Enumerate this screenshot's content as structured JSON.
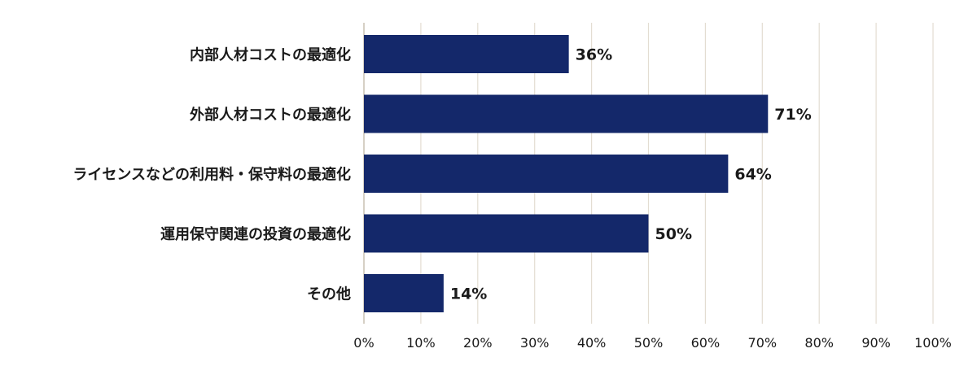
{
  "chart_data": {
    "type": "bar",
    "orientation": "horizontal",
    "title": "",
    "xlabel": "",
    "ylabel": "",
    "categories": [
      "内部人材コストの最適化",
      "外部人材コストの最適化",
      "ライセンスなどの利用料・保守料の最適化",
      "運用保守関連の投資の最適化",
      "その他"
    ],
    "values": [
      36,
      71,
      64,
      50,
      14
    ],
    "value_labels": [
      "36%",
      "71%",
      "64%",
      "50%",
      "14%"
    ],
    "xlim": [
      0,
      100
    ],
    "x_ticks": [
      0,
      10,
      20,
      30,
      40,
      50,
      60,
      70,
      80,
      90,
      100
    ],
    "x_tick_labels": [
      "0%",
      "10%",
      "20%",
      "30%",
      "40%",
      "50%",
      "60%",
      "70%",
      "80%",
      "90%",
      "100%"
    ],
    "grid": "vertical",
    "legend": "none",
    "bar_color": "#14286a",
    "grid_color": "#e3ddd2"
  }
}
